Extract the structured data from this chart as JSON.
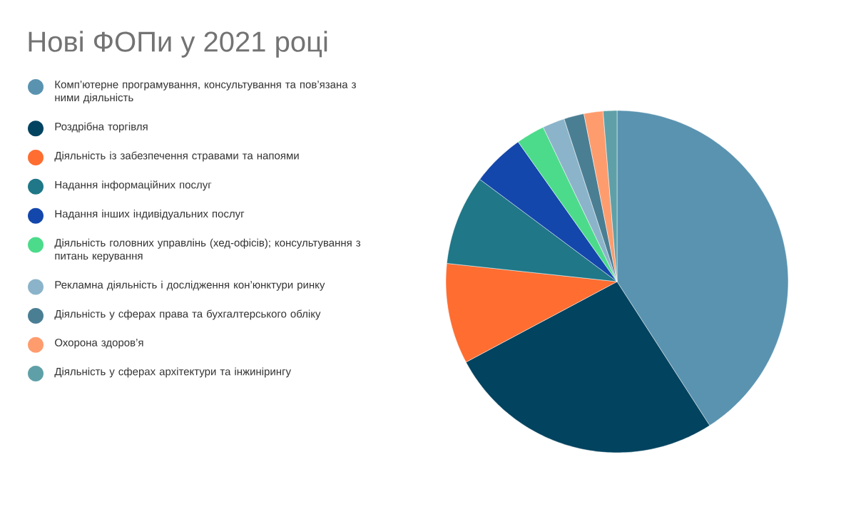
{
  "chart_data": {
    "type": "pie",
    "title": "Нові ФОПи у 2021 році",
    "categories": [
      "Комп’ютерне програмування, консультування та пов’язана з ними діяльність",
      "Роздрібна торгівля",
      "Діяльність із забезпечення стравами та напоями",
      "Надання інформаційних послуг",
      "Надання інших індивідуальних послуг",
      "Діяльність головних управлінь (хед-офісів); консультування з питань керування",
      "Рекламна діяльність і дослідження кон’юнктури ринку",
      "Діяльність у сферах права та бухгалтерського обліку",
      "Охорона здоров’я",
      "Діяльність у сферах архітектури та інжинірингу"
    ],
    "values": [
      40.9,
      26.3,
      9.5,
      8.5,
      5.0,
      2.7,
      2.1,
      1.9,
      1.8,
      1.3
    ],
    "colors": [
      "#5a93b0",
      "#02435f",
      "#ff6d31",
      "#1f7787",
      "#1447ab",
      "#4cdb8b",
      "#8bb4ca",
      "#4a7e93",
      "#ff9c6e",
      "#5fa0a8"
    ],
    "legend": "left"
  }
}
